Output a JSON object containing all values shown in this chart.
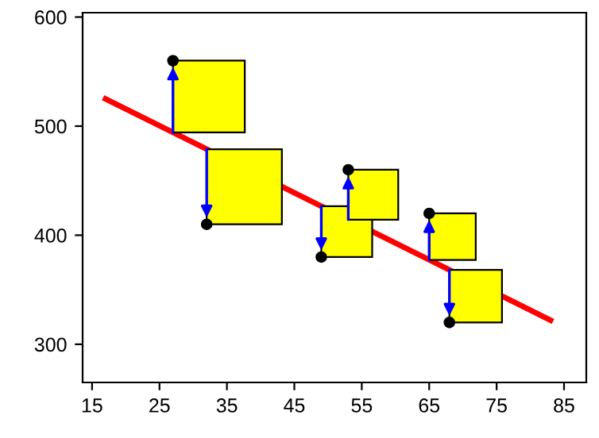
{
  "chart_data": {
    "type": "scatter",
    "series": [
      {
        "color": "#000000",
        "marker": "circle",
        "x": [
          27,
          32,
          49,
          53,
          65,
          68
        ],
        "values": [
          560,
          410,
          380,
          460,
          420,
          320
        ]
      },
      {
        "type": "line",
        "color": "#ff0000",
        "marker": "none",
        "x": [
          17,
          83
        ],
        "values": [
          525,
          322
        ]
      }
    ],
    "xlim": [
      13.6,
      88.3
    ],
    "ylim": [
      265,
      604
    ],
    "xticks": [
      15,
      25,
      35,
      45,
      55,
      65,
      75,
      85
    ],
    "yticks": [
      300,
      400,
      500,
      600
    ],
    "grid": false,
    "legend": false
  }
}
